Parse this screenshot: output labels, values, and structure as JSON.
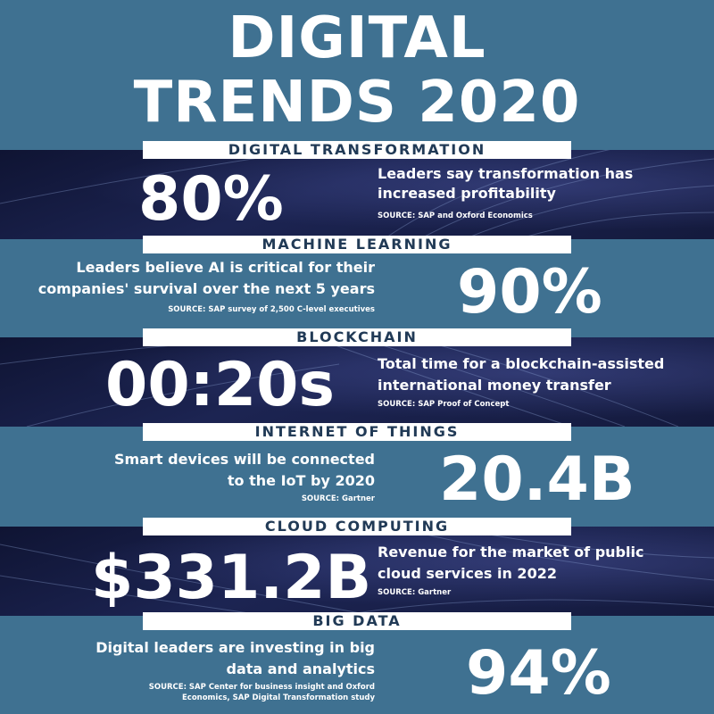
{
  "title": {
    "line1": "DIGITAL",
    "line2": "TRENDS 2020"
  },
  "colors": {
    "background": "#3f7191",
    "dark_band": "#141a3d",
    "label_bar": "#ffffff",
    "label_text": "#213a56"
  },
  "sections": [
    {
      "label": "DIGITAL TRANSFORMATION",
      "stat": "80%",
      "desc_line1": "Leaders say transformation has",
      "desc_line2": "increased profitability",
      "source": "SOURCE: SAP and Oxford Economics"
    },
    {
      "label": "MACHINE LEARNING",
      "stat": "90%",
      "desc_line1": "Leaders believe AI is critical for their",
      "desc_line2": "companies' survival over the next 5 years",
      "source": "SOURCE: SAP survey of 2,500 C-level executives"
    },
    {
      "label": "BLOCKCHAIN",
      "stat": "00:20s",
      "desc_line1": "Total time for a blockchain-assisted",
      "desc_line2": "international money transfer",
      "source": "SOURCE: SAP Proof of Concept"
    },
    {
      "label": "INTERNET OF THINGS",
      "stat": "20.4B",
      "desc_line1": "Smart devices will be connected",
      "desc_line2": "to the IoT by 2020",
      "source": "SOURCE: Gartner"
    },
    {
      "label": "CLOUD COMPUTING",
      "stat": "$331.2B",
      "desc_line1": "Revenue for the market of public",
      "desc_line2": "cloud services in 2022",
      "source": "SOURCE: Gartner"
    },
    {
      "label": "BIG DATA",
      "stat": "94%",
      "desc_line1": "Digital leaders are investing in big",
      "desc_line2": "data and analytics",
      "source_line1": "SOURCE: SAP Center for business insight and Oxford",
      "source_line2": "Economics, SAP Digital Transformation study"
    }
  ]
}
